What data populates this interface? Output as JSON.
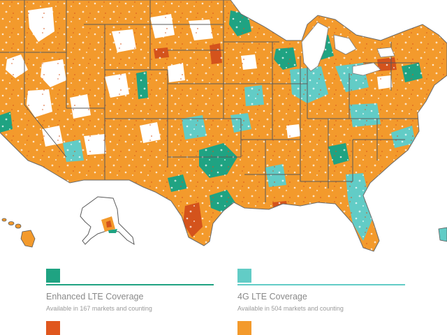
{
  "legend": {
    "enhanced": {
      "title": "Enhanced LTE Coverage",
      "subtitle": "Available in 167 markets and counting",
      "color": "#1fa382"
    },
    "lte4g": {
      "title": "4G LTE Coverage",
      "subtitle": "Available in 504 markets and counting",
      "color": "#62ccc6"
    },
    "extra_swatch_colors": [
      "#e0571e",
      "#f39a2c"
    ]
  },
  "map": {
    "primary_color": "#f39a2c",
    "state_border_color": "#5a5a5a",
    "icons": [
      "us-map-outline",
      "alaska-shape",
      "hawaii-islands"
    ]
  }
}
